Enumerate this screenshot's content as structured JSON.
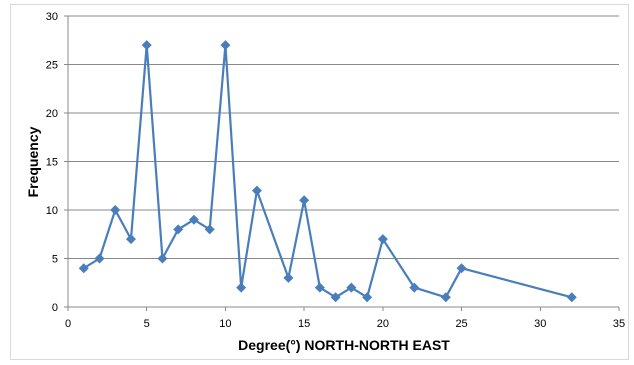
{
  "chart_data": {
    "type": "line",
    "title": "",
    "xlabel": "Degree(°) NORTH-NORTH EAST",
    "ylabel": "Frequency",
    "xlim": [
      0,
      35
    ],
    "ylim": [
      0,
      30
    ],
    "x_ticks": [
      "0",
      "5",
      "10",
      "15",
      "20",
      "25",
      "30",
      "35"
    ],
    "y_ticks": [
      "0",
      "5",
      "10",
      "15",
      "20",
      "25",
      "30"
    ],
    "grid": "horizontal",
    "legend": "none",
    "marker": "diamond",
    "series_color": "#4a7ebb",
    "series": [
      {
        "x": [
          1,
          2,
          3,
          4,
          5,
          6,
          7,
          8,
          9,
          10,
          11,
          12,
          14,
          15,
          16,
          17,
          18,
          19,
          20,
          22,
          24,
          25,
          32
        ],
        "values": [
          4,
          5,
          10,
          7,
          27,
          5,
          8,
          9,
          8,
          27,
          2,
          12,
          3,
          11,
          2,
          1,
          2,
          1,
          7,
          2,
          1,
          4,
          1
        ]
      }
    ]
  }
}
